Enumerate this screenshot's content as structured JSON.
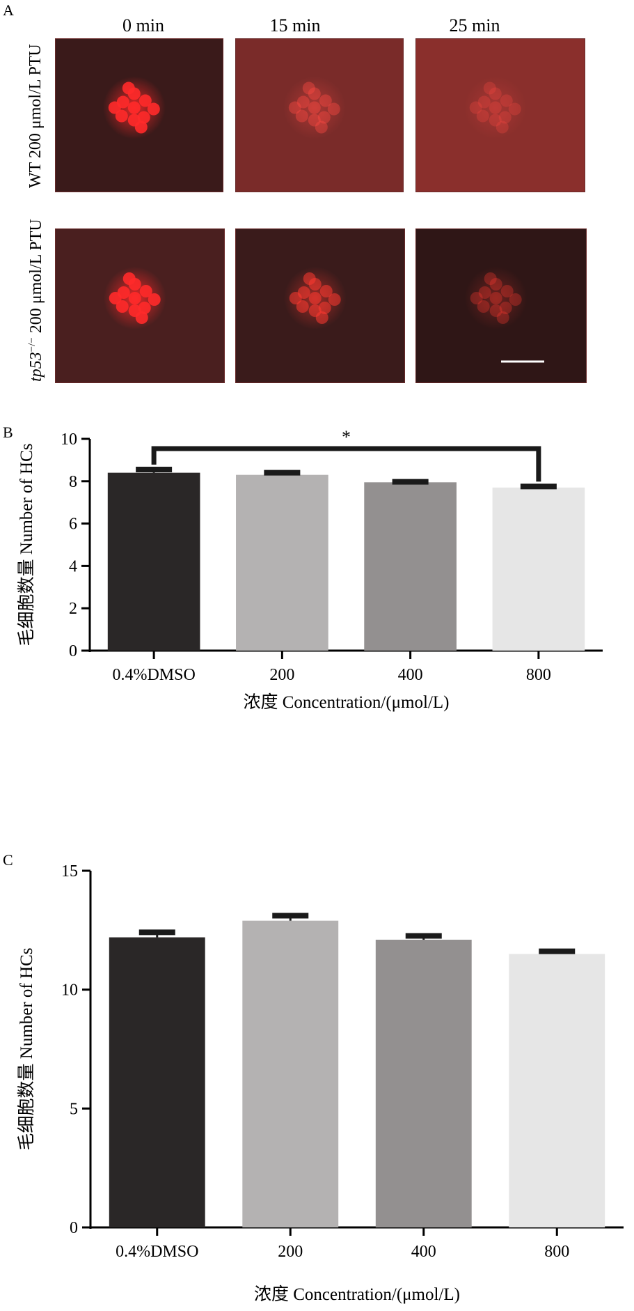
{
  "panel_a": {
    "letter": "A",
    "columns": [
      "0 min",
      "15 min",
      "25 min"
    ],
    "row_labels": [
      {
        "prefix": "",
        "text": "WT 200 μmol/L PTU"
      },
      {
        "prefix": "tp53",
        "sup": "−/−",
        "text": " 200 μmol/L PTU"
      }
    ],
    "images": [
      [
        {
          "bg": "#3a1a1a",
          "cluster": "#ff2a2a",
          "intensity": 1.0
        },
        {
          "bg": "#7a2b29",
          "cluster": "#ff4a44",
          "intensity": 0.45
        },
        {
          "bg": "#8a2f2c",
          "cluster": "#ff4a44",
          "intensity": 0.3
        }
      ],
      [
        {
          "bg": "#4a1f1f",
          "cluster": "#ff2a2a",
          "intensity": 1.0
        },
        {
          "bg": "#3a1b1b",
          "cluster": "#ff3a30",
          "intensity": 0.6
        },
        {
          "bg": "#2f1616",
          "cluster": "#ff3a30",
          "intensity": 0.35
        }
      ]
    ],
    "scale_bar": true
  },
  "chart_data": [
    {
      "panel": "B",
      "type": "bar",
      "categories": [
        "0.4%DMSO",
        "200",
        "400",
        "800"
      ],
      "values": [
        8.4,
        8.3,
        7.95,
        7.7
      ],
      "errors": [
        0.25,
        0.2,
        0.12,
        0.15
      ],
      "colors": [
        "#2a2727",
        "#b4b2b2",
        "#939090",
        "#e6e6e6"
      ],
      "ylabel": "毛细胞数量 Number of HCs",
      "xlabel": "浓度 Concentration/(μmol/L)",
      "ylim": [
        0,
        10
      ],
      "yticks": [
        "0",
        "2",
        "4",
        "6",
        "8",
        "10"
      ],
      "significance": {
        "from": 0,
        "to": 3,
        "label": "*"
      }
    },
    {
      "panel": "C",
      "type": "bar",
      "categories": [
        "0.4%DMSO",
        "200",
        "400",
        "800"
      ],
      "values": [
        12.2,
        12.9,
        12.1,
        11.5
      ],
      "errors": [
        0.3,
        0.3,
        0.25,
        0.2
      ],
      "colors": [
        "#2a2727",
        "#b4b2b2",
        "#939090",
        "#e6e6e6"
      ],
      "ylabel": "毛细胞数量 Number of HCs",
      "xlabel": "浓度 Concentration/(μmol/L)",
      "ylim": [
        0,
        15
      ],
      "yticks": [
        "0",
        "5",
        "10",
        "15"
      ]
    }
  ]
}
